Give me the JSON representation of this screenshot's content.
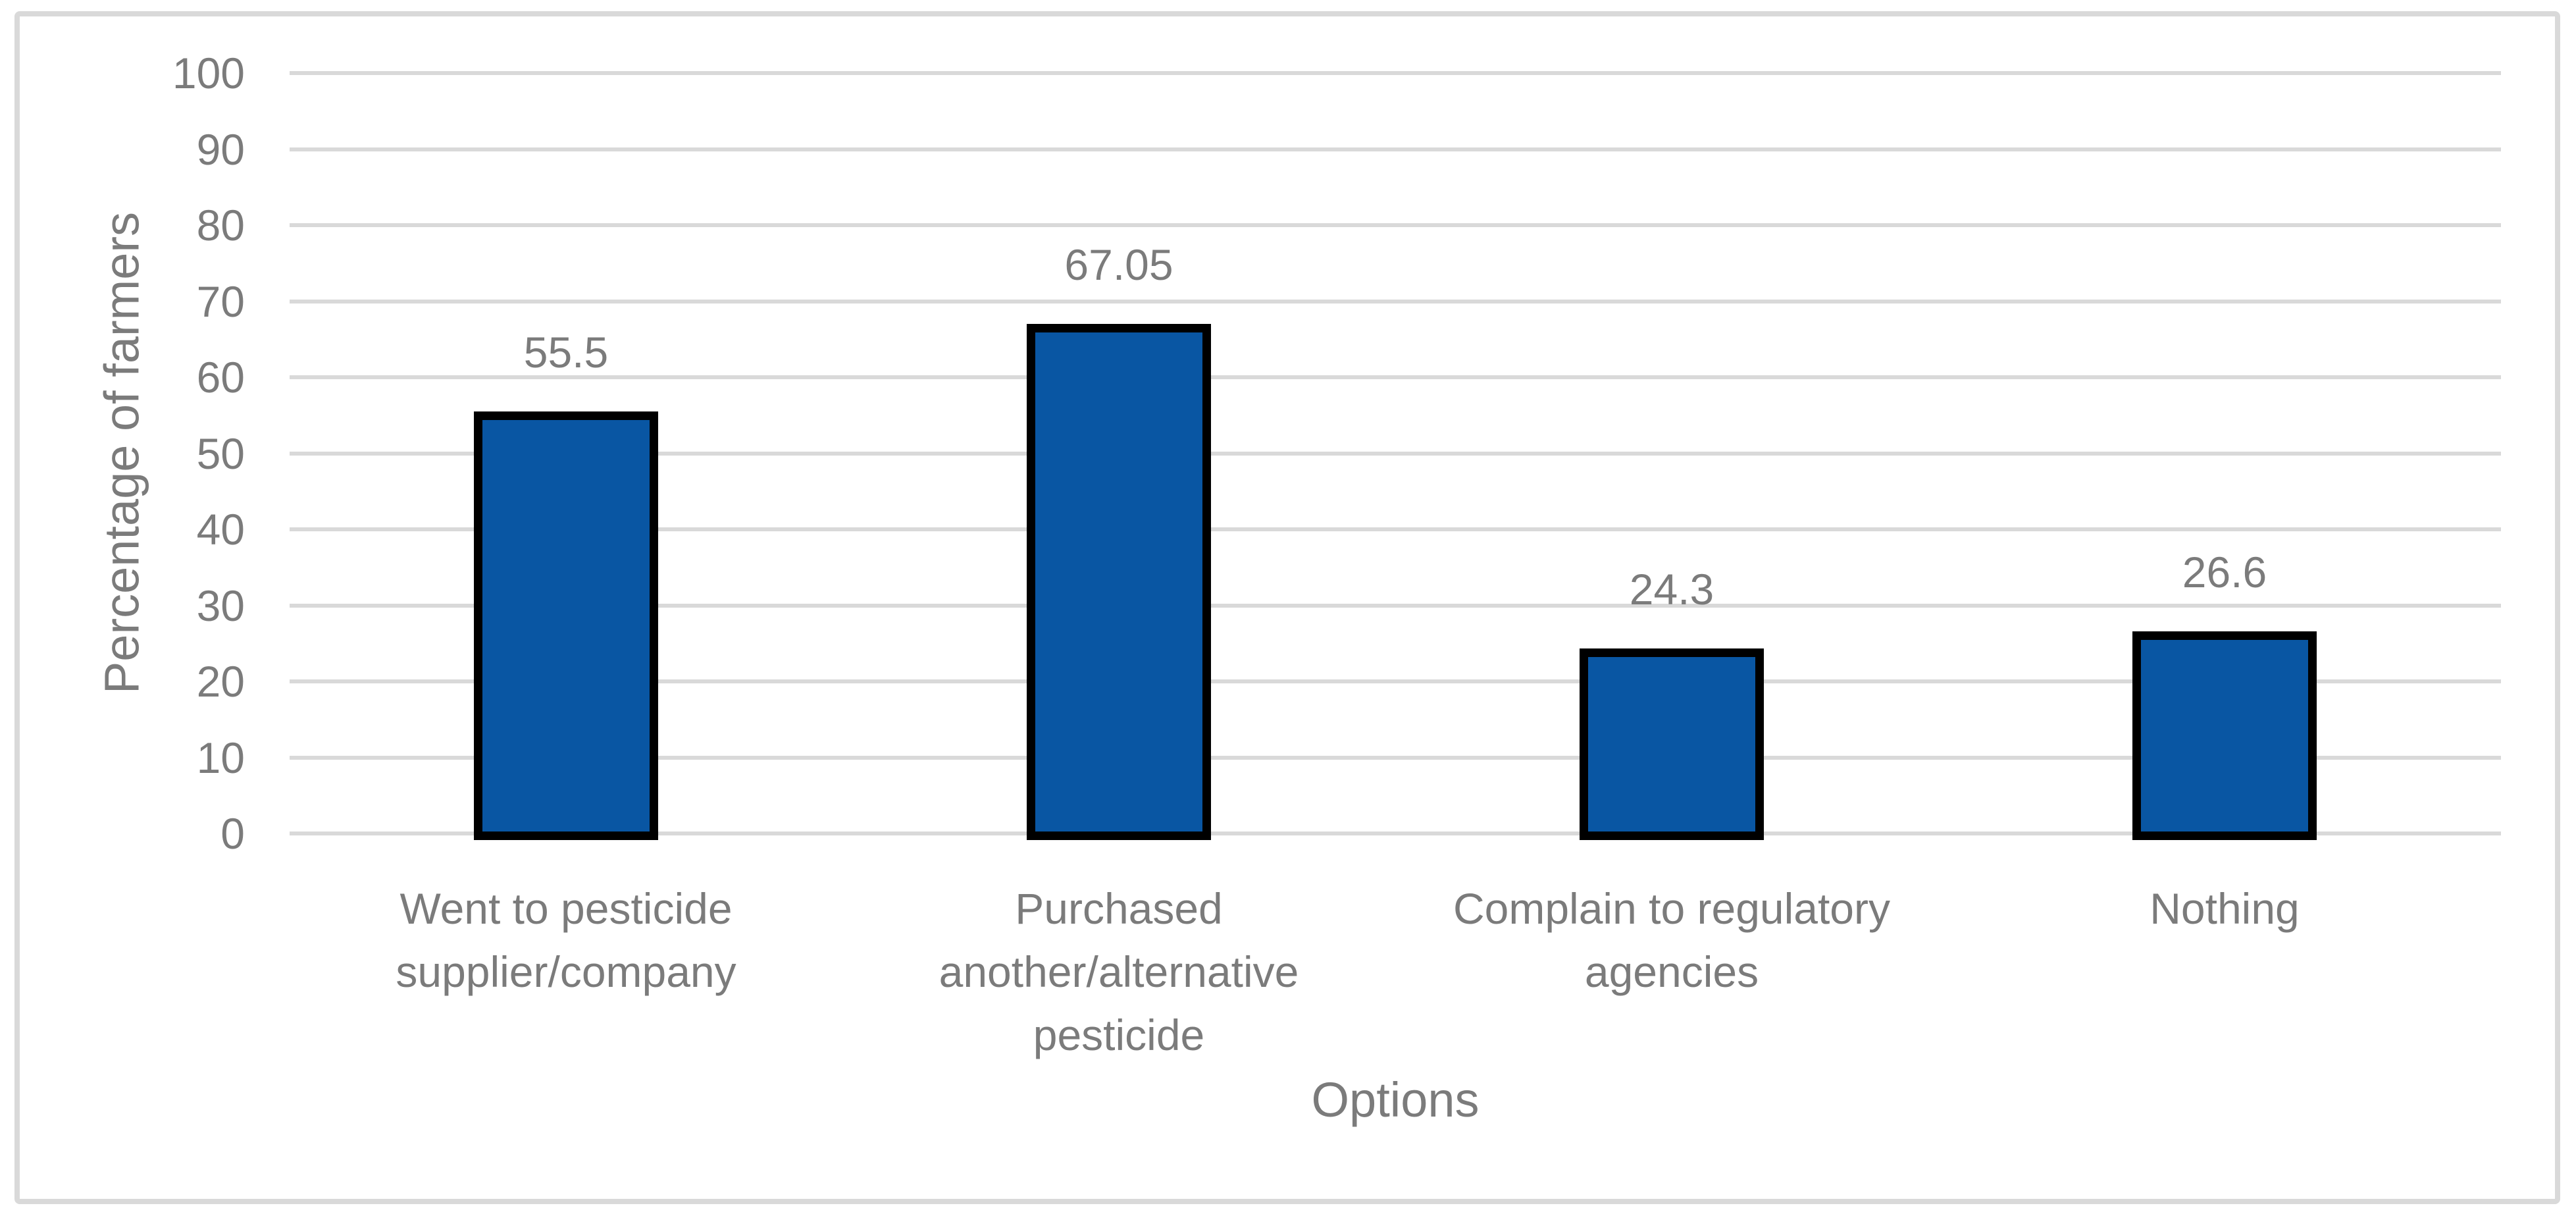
{
  "chart_data": {
    "type": "bar",
    "title": "",
    "categories": [
      "Went to pesticide supplier/company",
      "Purchased another/alternative pesticide",
      "Complain to regulatory agencies",
      "Nothing"
    ],
    "values": [
      55.5,
      67.05,
      24.3,
      26.6
    ],
    "data_labels": [
      "55.5",
      "67.05",
      "24.3",
      "26.6"
    ],
    "xlabel": "Options",
    "ylabel": "Percentage of farmers",
    "ylim": [
      0,
      100
    ],
    "ytick_step": 10,
    "ytick_labels": [
      "0",
      "10",
      "20",
      "30",
      "40",
      "50",
      "60",
      "70",
      "80",
      "90",
      "100"
    ],
    "grid": "horizontal",
    "legend": "none"
  },
  "colors": {
    "bar_fill": "#0956A3",
    "bar_border": "#000000",
    "gridline": "#D9D9D9",
    "frame_border": "#D9D9D9",
    "axis_text": "#7B7B7B"
  }
}
